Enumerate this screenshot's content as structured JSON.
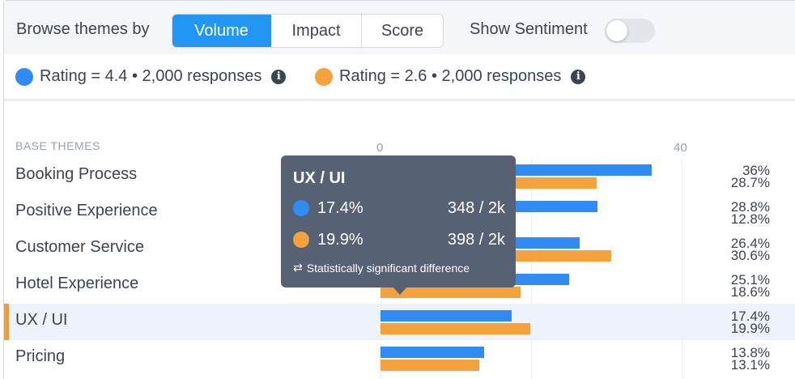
{
  "toolbar": {
    "browse_label": "Browse themes by",
    "modes": [
      "Volume",
      "Impact",
      "Score"
    ],
    "active_mode": "Volume",
    "sentiment_label": "Show Sentiment",
    "sentiment_on": false
  },
  "legend": {
    "items": [
      {
        "label": "Rating = 4.4 • 2,000 responses",
        "color": "#2f8cf5",
        "icon": "info-icon"
      },
      {
        "label": "Rating = 2.6 • 2,000 responses",
        "color": "#f5a23c",
        "icon": "info-icon"
      }
    ]
  },
  "themes": {
    "section_title": "BASE THEMES",
    "axis_ticks": [
      "0",
      "40"
    ],
    "axis_max": 40,
    "selected": "UX / UI",
    "rows": [
      {
        "label": "Booking Process",
        "blue": 36,
        "orange": 28.7,
        "blue_text": "36%",
        "orange_text": "28.7%"
      },
      {
        "label": "Positive Experience",
        "blue": 28.8,
        "orange": 12.8,
        "blue_text": "28.8%",
        "orange_text": "12.8%"
      },
      {
        "label": "Customer Service",
        "blue": 26.4,
        "orange": 30.6,
        "blue_text": "26.4%",
        "orange_text": "30.6%"
      },
      {
        "label": "Hotel Experience",
        "blue": 25.1,
        "orange": 18.6,
        "blue_text": "25.1%",
        "orange_text": "18.6%"
      },
      {
        "label": "UX / UI",
        "blue": 17.4,
        "orange": 19.9,
        "blue_text": "17.4%",
        "orange_text": "19.9%"
      },
      {
        "label": "Pricing",
        "blue": 13.8,
        "orange": 13.1,
        "blue_text": "13.8%",
        "orange_text": "13.1%"
      }
    ]
  },
  "tooltip": {
    "title": "UX / UI",
    "rows": [
      {
        "pct": "17.4%",
        "count": "348 / 2k",
        "color": "#2f8cf5"
      },
      {
        "pct": "19.9%",
        "count": "398 / 2k",
        "color": "#f5a23c"
      }
    ],
    "footer": "Statistically significant difference",
    "footer_icon": "swap-arrows-icon"
  }
}
